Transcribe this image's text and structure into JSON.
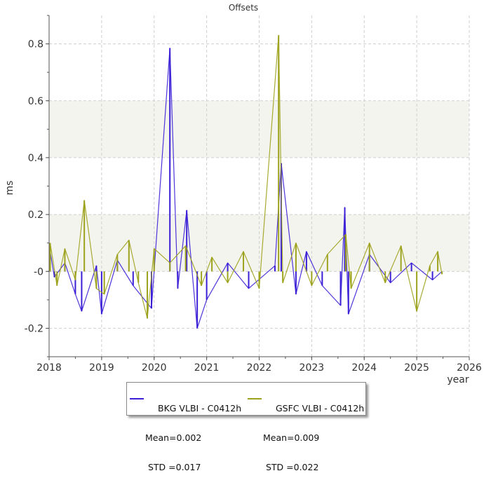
{
  "chart_data": {
    "type": "line",
    "title": "Offsets",
    "xlabel": "year",
    "ylabel": "ms",
    "xlim": [
      2018,
      2026
    ],
    "ylim": [
      -0.3,
      0.9
    ],
    "xticks": [
      2018,
      2019,
      2020,
      2021,
      2022,
      2023,
      2024,
      2025,
      2026
    ],
    "yticks": [
      -0.2,
      0.0,
      0.2,
      0.4,
      0.6,
      0.8
    ],
    "ytick_labels": [
      "-0.2",
      "-0",
      "0.2",
      "0.4",
      "0.6",
      "0.8"
    ],
    "grid": true,
    "shaded_bands": [
      [
        0.0,
        0.2
      ],
      [
        0.4,
        0.6
      ]
    ],
    "legend_position": "bottom-center",
    "series": [
      {
        "name": "BKG VLBI - C0412h",
        "color": "#3a1fd6",
        "mean_label": "Mean=0.002",
        "std_label": " STD =0.017",
        "points": [
          [
            2018.02,
            0.07
          ],
          [
            2018.1,
            -0.02
          ],
          [
            2018.3,
            0.03
          ],
          [
            2018.5,
            -0.08
          ],
          [
            2018.62,
            -0.14
          ],
          [
            2018.9,
            0.02
          ],
          [
            2019.0,
            -0.15
          ],
          [
            2019.3,
            0.04
          ],
          [
            2019.6,
            -0.05
          ],
          [
            2019.95,
            -0.13
          ],
          [
            2020.3,
            0.785
          ],
          [
            2020.45,
            -0.06
          ],
          [
            2020.62,
            0.215
          ],
          [
            2020.82,
            -0.2
          ],
          [
            2021.0,
            -0.1
          ],
          [
            2021.4,
            0.03
          ],
          [
            2021.8,
            -0.06
          ],
          [
            2022.3,
            0.02
          ],
          [
            2022.42,
            0.38
          ],
          [
            2022.7,
            -0.08
          ],
          [
            2022.9,
            0.07
          ],
          [
            2023.2,
            -0.05
          ],
          [
            2023.55,
            -0.12
          ],
          [
            2023.63,
            0.225
          ],
          [
            2023.7,
            -0.15
          ],
          [
            2024.1,
            0.06
          ],
          [
            2024.5,
            -0.04
          ],
          [
            2024.9,
            0.03
          ],
          [
            2025.3,
            -0.03
          ],
          [
            2025.48,
            0.0
          ]
        ]
      },
      {
        "name": "GSFC VLBI - C0412h",
        "color": "#9da21c",
        "mean_label": "Mean=0.009",
        "std_label": " STD =0.022",
        "points": [
          [
            2018.02,
            0.1
          ],
          [
            2018.15,
            -0.05
          ],
          [
            2018.3,
            0.08
          ],
          [
            2018.5,
            -0.03
          ],
          [
            2018.67,
            0.25
          ],
          [
            2018.9,
            -0.06
          ],
          [
            2019.05,
            -0.08
          ],
          [
            2019.3,
            0.06
          ],
          [
            2019.52,
            0.11
          ],
          [
            2019.7,
            -0.04
          ],
          [
            2019.87,
            -0.165
          ],
          [
            2020.0,
            0.08
          ],
          [
            2020.3,
            0.03
          ],
          [
            2020.6,
            0.09
          ],
          [
            2020.9,
            -0.05
          ],
          [
            2021.1,
            0.05
          ],
          [
            2021.4,
            -0.04
          ],
          [
            2021.7,
            0.07
          ],
          [
            2022.0,
            -0.06
          ],
          [
            2022.37,
            0.83
          ],
          [
            2022.45,
            -0.04
          ],
          [
            2022.7,
            0.1
          ],
          [
            2023.0,
            -0.05
          ],
          [
            2023.3,
            0.06
          ],
          [
            2023.65,
            0.13
          ],
          [
            2023.75,
            -0.06
          ],
          [
            2024.1,
            0.1
          ],
          [
            2024.4,
            -0.04
          ],
          [
            2024.7,
            0.09
          ],
          [
            2025.0,
            -0.14
          ],
          [
            2025.25,
            0.02
          ],
          [
            2025.4,
            0.07
          ],
          [
            2025.48,
            -0.01
          ]
        ]
      }
    ]
  }
}
